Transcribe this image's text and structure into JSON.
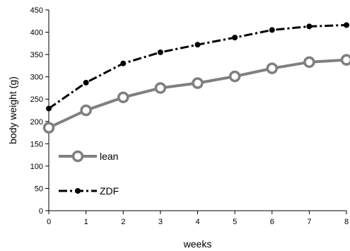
{
  "chart_data": {
    "type": "line",
    "title": "",
    "xlabel": "weeks",
    "ylabel": "body weight (g)",
    "x": [
      0,
      1,
      2,
      3,
      4,
      5,
      6,
      7,
      8
    ],
    "xlim": [
      0,
      8
    ],
    "ylim": [
      0,
      450
    ],
    "xticks": [
      "0",
      "1",
      "2",
      "3",
      "4",
      "5",
      "6",
      "7",
      "8"
    ],
    "yticks": [
      "0",
      "50",
      "100",
      "150",
      "200",
      "250",
      "300",
      "350",
      "400",
      "450"
    ],
    "grid": false,
    "legend_position": "bottom-left",
    "series": [
      {
        "name": "lean",
        "values": [
          186,
          225,
          254,
          275,
          286,
          301,
          319,
          333,
          338
        ],
        "color": "#7f7f7f",
        "line_style": "solid",
        "marker": "open-circle"
      },
      {
        "name": "ZDF",
        "values": [
          229,
          287,
          330,
          355,
          372,
          388,
          405,
          413,
          416
        ],
        "color": "#000000",
        "line_style": "dash-dot",
        "marker": "dot"
      }
    ]
  }
}
